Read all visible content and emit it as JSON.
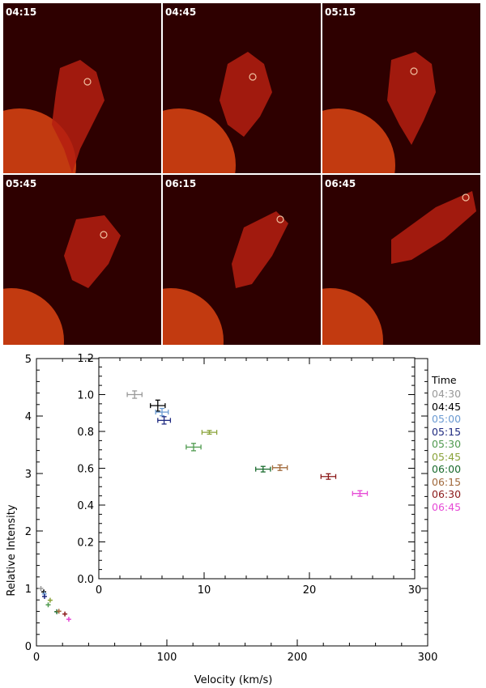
{
  "panels": [
    {
      "time": "04:15"
    },
    {
      "time": "04:45"
    },
    {
      "time": "05:15"
    },
    {
      "time": "05:45"
    },
    {
      "time": "06:15"
    },
    {
      "time": "06:45"
    }
  ],
  "chart_data": {
    "type": "scatter",
    "title": "",
    "xlabel": "Velocity (km/s)",
    "ylabel": "Relative Intensity",
    "xlim": [
      0,
      300
    ],
    "ylim": [
      0,
      5
    ],
    "xticks": [
      0,
      100,
      200,
      300
    ],
    "yticks": [
      0,
      1,
      2,
      3,
      4,
      5
    ],
    "inset": {
      "xlim": [
        0,
        30
      ],
      "ylim": [
        0,
        1.2
      ],
      "xticks": [
        0,
        10,
        20,
        30
      ],
      "yticks": [
        "0.0",
        "0.2",
        "0.4",
        "0.6",
        "0.8",
        "1.0",
        "1.2"
      ]
    },
    "legend_title": "Time",
    "series": [
      {
        "name": "04:30",
        "color": "#999999",
        "x": 3.4,
        "y": 1.0,
        "xerr": 0.7,
        "yerr": 0.02
      },
      {
        "name": "04:45",
        "color": "#000000",
        "x": 5.6,
        "y": 0.94,
        "xerr": 0.7,
        "yerr": 0.03
      },
      {
        "name": "05:00",
        "color": "#6b9bd2",
        "x": 6.0,
        "y": 0.905,
        "xerr": 0.6,
        "yerr": 0.02
      },
      {
        "name": "05:15",
        "color": "#1f2a80",
        "x": 6.2,
        "y": 0.86,
        "xerr": 0.6,
        "yerr": 0.02
      },
      {
        "name": "05:30",
        "color": "#4f9a4f",
        "x": 9.0,
        "y": 0.715,
        "xerr": 0.7,
        "yerr": 0.02
      },
      {
        "name": "05:45",
        "color": "#8aa33a",
        "x": 10.5,
        "y": 0.795,
        "xerr": 0.7,
        "yerr": 0.01
      },
      {
        "name": "06:00",
        "color": "#1a6b2e",
        "x": 15.6,
        "y": 0.595,
        "xerr": 0.7,
        "yerr": 0.015
      },
      {
        "name": "06:15",
        "color": "#a0683a",
        "x": 17.2,
        "y": 0.603,
        "xerr": 0.7,
        "yerr": 0.015
      },
      {
        "name": "06:30",
        "color": "#8b1a1a",
        "x": 21.8,
        "y": 0.555,
        "xerr": 0.7,
        "yerr": 0.015
      },
      {
        "name": "06:45",
        "color": "#e64ad6",
        "x": 24.8,
        "y": 0.463,
        "xerr": 0.7,
        "yerr": 0.015
      }
    ]
  }
}
